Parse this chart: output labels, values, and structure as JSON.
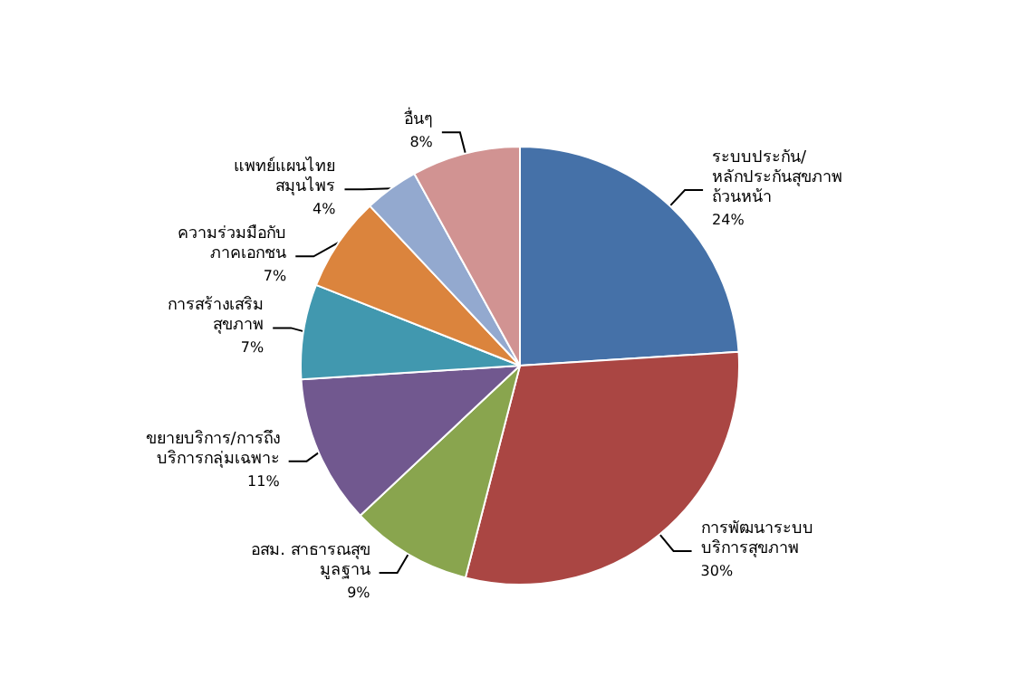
{
  "chart_data": {
    "type": "pie",
    "categories": [
      "ระบบประกัน/\nหลักประกันสุขภาพ\nถ้วนหน้า",
      "การพัฒนาระบบ\nบริการสุขภาพ",
      "อสม. สาธารณสุข\nมูลฐาน",
      "ขยายบริการ/การถึง\nบริการกลุ่มเฉพาะ",
      "การสร้างเสริม\nสุขภาพ",
      "ความร่วมมือกับ\nภาคเอกชน",
      "แพทย์แผนไทย\nสมุนไพร",
      "อื่นๆ"
    ],
    "values": [
      24,
      30,
      9,
      11,
      7,
      7,
      4,
      8
    ],
    "value_labels": [
      "24%",
      "30%",
      "9%",
      "11%",
      "7%",
      "7%",
      "4%",
      "8%"
    ],
    "colors": [
      "#4571a8",
      "#aa4643",
      "#89a54e",
      "#71588f",
      "#4198af",
      "#db843d",
      "#93a9cf",
      "#d19392"
    ],
    "legend": false
  }
}
